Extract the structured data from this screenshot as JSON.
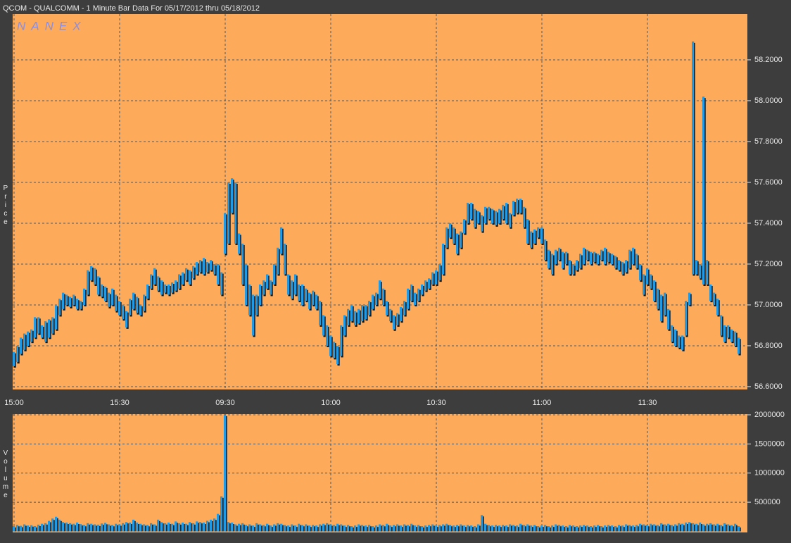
{
  "chart_data": [
    {
      "type": "range-bar",
      "title": "QCOM - QUALCOMM - 1 Minute Bar Data For 05/17/2012  thru  05/18/2012",
      "watermark": "NANEX",
      "ylabel": "Price",
      "color": "#1f9ae6",
      "grid": true,
      "xlim": [
        -0.4,
        208.4
      ],
      "xticks": [
        {
          "value": 0,
          "label": "15:00"
        },
        {
          "value": 30,
          "label": "15:30"
        },
        {
          "value": 60,
          "label": "09:30"
        },
        {
          "value": 90,
          "label": "10:00"
        },
        {
          "value": 120,
          "label": "10:30"
        },
        {
          "value": 150,
          "label": "11:00"
        },
        {
          "value": 180,
          "label": "11:30"
        }
      ],
      "ylim": [
        56.586,
        58.424
      ],
      "yticks": [
        {
          "value": 56.6,
          "label": "56.6000"
        },
        {
          "value": 56.8,
          "label": "56.8000"
        },
        {
          "value": 57.0,
          "label": "57.0000"
        },
        {
          "value": 57.2,
          "label": "57.2000"
        },
        {
          "value": 57.4,
          "label": "57.4000"
        },
        {
          "value": 57.6,
          "label": "57.6000"
        },
        {
          "value": 57.8,
          "label": "57.8000"
        },
        {
          "value": 58.0,
          "label": "58.0000"
        },
        {
          "value": 58.2,
          "label": "58.2000"
        }
      ],
      "high": [
        56.77,
        56.8,
        56.84,
        56.86,
        56.87,
        56.88,
        56.94,
        56.94,
        56.9,
        56.92,
        56.93,
        56.94,
        57.0,
        57.03,
        57.06,
        57.05,
        57.04,
        57.05,
        57.03,
        57.02,
        57.08,
        57.17,
        57.19,
        57.18,
        57.14,
        57.1,
        57.09,
        57.06,
        57.08,
        57.05,
        57.02,
        57.0,
        56.97,
        57.03,
        57.06,
        57.04,
        57.0,
        57.05,
        57.1,
        57.15,
        57.18,
        57.14,
        57.12,
        57.1,
        57.1,
        57.11,
        57.12,
        57.15,
        57.16,
        57.18,
        57.17,
        57.19,
        57.21,
        57.22,
        57.23,
        57.21,
        57.22,
        57.2,
        57.2,
        57.16,
        57.45,
        57.6,
        57.62,
        57.6,
        57.35,
        57.3,
        57.2,
        57.1,
        57.05,
        57.05,
        57.1,
        57.12,
        57.15,
        57.12,
        57.2,
        57.28,
        57.38,
        57.3,
        57.15,
        57.12,
        57.15,
        57.1,
        57.1,
        57.08,
        57.06,
        57.07,
        57.05,
        57.02,
        56.95,
        56.9,
        56.85,
        56.82,
        56.8,
        56.9,
        56.95,
        56.98,
        57.0,
        56.97,
        56.98,
        57.0,
        57.0,
        57.02,
        57.05,
        57.06,
        57.12,
        57.08,
        57.02,
        56.98,
        56.95,
        56.96,
        56.99,
        57.02,
        57.08,
        57.1,
        57.06,
        57.08,
        57.1,
        57.12,
        57.13,
        57.16,
        57.17,
        57.2,
        57.3,
        57.38,
        57.4,
        57.38,
        57.35,
        57.36,
        57.42,
        57.5,
        57.5,
        57.47,
        57.46,
        57.44,
        57.48,
        57.48,
        57.47,
        57.46,
        57.47,
        57.49,
        57.5,
        57.45,
        57.51,
        57.52,
        57.52,
        57.48,
        57.42,
        57.36,
        57.37,
        57.38,
        57.38,
        57.32,
        57.27,
        57.25,
        57.27,
        57.28,
        57.26,
        57.26,
        57.22,
        57.2,
        57.22,
        57.25,
        57.28,
        57.27,
        57.26,
        57.26,
        57.25,
        57.27,
        57.28,
        57.26,
        57.25,
        57.24,
        57.22,
        57.21,
        57.22,
        57.27,
        57.28,
        57.25,
        57.2,
        57.15,
        57.18,
        57.15,
        57.12,
        57.08,
        57.05,
        57.06,
        56.98,
        56.9,
        56.88,
        56.85,
        56.85,
        57.02,
        57.06,
        58.29,
        57.22,
        57.2,
        58.02,
        57.22,
        57.1,
        57.06,
        57.03,
        56.95,
        56.9,
        56.9,
        56.88,
        56.87,
        56.84
      ],
      "low": [
        56.7,
        56.72,
        56.76,
        56.78,
        56.8,
        56.82,
        56.84,
        56.86,
        56.84,
        56.82,
        56.84,
        56.86,
        56.88,
        56.95,
        56.98,
        57.0,
        56.99,
        57.0,
        56.98,
        56.98,
        57.0,
        57.05,
        57.12,
        57.1,
        57.05,
        57.04,
        57.02,
        56.99,
        57.0,
        56.97,
        56.95,
        56.93,
        56.89,
        56.95,
        56.98,
        56.96,
        56.95,
        56.97,
        57.03,
        57.08,
        57.1,
        57.07,
        57.05,
        57.06,
        57.05,
        57.06,
        57.07,
        57.08,
        57.1,
        57.12,
        57.1,
        57.13,
        57.15,
        57.16,
        57.15,
        57.16,
        57.17,
        57.15,
        57.1,
        57.05,
        57.25,
        57.3,
        57.45,
        57.3,
        57.25,
        57.1,
        57.0,
        56.95,
        56.85,
        56.95,
        57.0,
        57.05,
        57.08,
        57.05,
        57.1,
        57.15,
        57.25,
        57.15,
        57.05,
        57.03,
        57.05,
        57.02,
        57.0,
        57.02,
        56.98,
        57.0,
        56.98,
        56.9,
        56.85,
        56.8,
        56.75,
        56.74,
        56.71,
        56.75,
        56.85,
        56.9,
        56.92,
        56.9,
        56.91,
        56.92,
        56.93,
        56.95,
        56.98,
        57.0,
        57.03,
        57.0,
        56.95,
        56.92,
        56.88,
        56.9,
        56.92,
        56.95,
        56.98,
        57.02,
        57.0,
        57.02,
        57.05,
        57.07,
        57.08,
        57.1,
        57.1,
        57.12,
        57.15,
        57.28,
        57.33,
        57.3,
        57.25,
        57.28,
        57.35,
        57.4,
        57.42,
        57.38,
        57.4,
        57.36,
        57.4,
        57.42,
        57.4,
        57.39,
        57.4,
        57.42,
        57.4,
        57.38,
        57.44,
        57.45,
        57.45,
        57.38,
        57.3,
        57.28,
        57.3,
        57.33,
        57.3,
        57.22,
        57.18,
        57.15,
        57.2,
        57.22,
        57.18,
        57.2,
        57.15,
        57.15,
        57.17,
        57.18,
        57.2,
        57.22,
        57.2,
        57.21,
        57.2,
        57.22,
        57.2,
        57.21,
        57.2,
        57.18,
        57.17,
        57.15,
        57.16,
        57.18,
        57.2,
        57.18,
        57.12,
        57.05,
        57.1,
        57.08,
        57.02,
        56.98,
        56.92,
        56.95,
        56.88,
        56.82,
        56.8,
        56.79,
        56.78,
        56.85,
        57.0,
        57.15,
        57.15,
        57.13,
        57.1,
        57.1,
        57.02,
        57.0,
        56.95,
        56.85,
        56.82,
        56.84,
        56.82,
        56.8,
        56.76
      ]
    },
    {
      "type": "bar",
      "ylabel": "Volume",
      "color": "#1f9ae6",
      "grid": true,
      "xlim": [
        -0.4,
        208.4
      ],
      "ylim": [
        -19000,
        2012000
      ],
      "yticks": [
        500000,
        1000000,
        1500000,
        2000000
      ],
      "values": [
        90000,
        110000,
        95000,
        120000,
        100000,
        105000,
        90000,
        115000,
        130000,
        140000,
        180000,
        220000,
        250000,
        200000,
        160000,
        150000,
        140000,
        130000,
        150000,
        125000,
        110000,
        140000,
        130000,
        120000,
        115000,
        135000,
        145000,
        120000,
        110000,
        130000,
        120000,
        140000,
        160000,
        150000,
        200000,
        150000,
        130000,
        120000,
        110000,
        140000,
        120000,
        200000,
        160000,
        140000,
        150000,
        130000,
        170000,
        140000,
        150000,
        130000,
        160000,
        140000,
        170000,
        160000,
        150000,
        180000,
        200000,
        220000,
        300000,
        600000,
        2000000,
        160000,
        150000,
        120000,
        130000,
        140000,
        110000,
        120000,
        100000,
        140000,
        120000,
        110000,
        130000,
        100000,
        120000,
        140000,
        130000,
        110000,
        100000,
        120000,
        100000,
        130000,
        110000,
        120000,
        100000,
        110000,
        100000,
        120000,
        130000,
        140000,
        120000,
        110000,
        130000,
        120000,
        100000,
        110000,
        90000,
        100000,
        120000,
        110000,
        100000,
        110000,
        90000,
        100000,
        120000,
        110000,
        130000,
        100000,
        110000,
        120000,
        100000,
        120000,
        110000,
        130000,
        100000,
        110000,
        90000,
        100000,
        110000,
        120000,
        100000,
        110000,
        120000,
        130000,
        110000,
        100000,
        110000,
        120000,
        100000,
        110000,
        100000,
        90000,
        120000,
        280000,
        130000,
        110000,
        100000,
        110000,
        100000,
        110000,
        100000,
        120000,
        110000,
        100000,
        130000,
        110000,
        120000,
        100000,
        110000,
        90000,
        100000,
        110000,
        90000,
        100000,
        120000,
        110000,
        100000,
        90000,
        110000,
        100000,
        90000,
        100000,
        110000,
        100000,
        90000,
        100000,
        110000,
        90000,
        100000,
        110000,
        100000,
        90000,
        110000,
        100000,
        120000,
        110000,
        100000,
        110000,
        130000,
        120000,
        110000,
        130000,
        120000,
        110000,
        140000,
        120000,
        130000,
        110000,
        120000,
        140000,
        130000,
        150000,
        160000,
        140000,
        130000,
        150000,
        120000,
        130000,
        140000,
        120000,
        130000,
        110000,
        140000,
        120000,
        110000,
        130000,
        90000
      ]
    }
  ]
}
